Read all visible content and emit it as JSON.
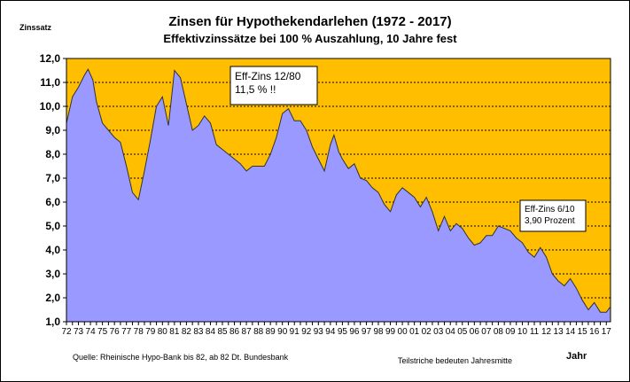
{
  "chart_data": {
    "type": "area",
    "title": "Zinsen für Hypothekendarlehen (1972 - 2017)",
    "subtitle": "Effektivzinssätze bei 100 % Auszahlung,  10 Jahre fest",
    "ylabel": "Zinssatz",
    "xlabel": "Jahr",
    "ylim": [
      1.0,
      12.0
    ],
    "yticks": [
      "1,0",
      "2,0",
      "3,0",
      "4,0",
      "5,0",
      "6,0",
      "7,0",
      "8,0",
      "9,0",
      "10,0",
      "11,0",
      "12,0"
    ],
    "xticks": [
      "72",
      "73",
      "74",
      "75",
      "76",
      "77",
      "78",
      "79",
      "80",
      "81",
      "82",
      "83",
      "84",
      "85",
      "86",
      "87",
      "88",
      "89",
      "90",
      "91",
      "92",
      "93",
      "94",
      "95",
      "96",
      "97",
      "98",
      "99",
      "00",
      "01",
      "02",
      "03",
      "04",
      "05",
      "06",
      "07",
      "08",
      "09",
      "10",
      "11",
      "12",
      "13",
      "14",
      "15",
      "16",
      "17"
    ],
    "x_start_year": 1972,
    "x_end_year": 2017,
    "series": [
      {
        "points": [
          [
            1972.0,
            9.3
          ],
          [
            1972.5,
            10.4
          ],
          [
            1973.0,
            10.8
          ],
          [
            1973.5,
            11.3
          ],
          [
            1973.8,
            11.55
          ],
          [
            1974.2,
            11.1
          ],
          [
            1974.5,
            10.2
          ],
          [
            1975.0,
            9.3
          ],
          [
            1975.5,
            9.0
          ],
          [
            1976.0,
            8.7
          ],
          [
            1976.5,
            8.5
          ],
          [
            1977.0,
            7.5
          ],
          [
            1977.5,
            6.4
          ],
          [
            1978.0,
            6.1
          ],
          [
            1978.5,
            7.3
          ],
          [
            1979.0,
            8.6
          ],
          [
            1979.5,
            10.0
          ],
          [
            1980.0,
            10.4
          ],
          [
            1980.5,
            9.2
          ],
          [
            1981.0,
            11.5
          ],
          [
            1981.5,
            11.2
          ],
          [
            1982.0,
            10.1
          ],
          [
            1982.5,
            9.0
          ],
          [
            1983.0,
            9.2
          ],
          [
            1983.5,
            9.6
          ],
          [
            1984.0,
            9.3
          ],
          [
            1984.5,
            8.4
          ],
          [
            1985.0,
            8.2
          ],
          [
            1985.5,
            8.0
          ],
          [
            1986.0,
            7.8
          ],
          [
            1986.5,
            7.6
          ],
          [
            1987.0,
            7.3
          ],
          [
            1987.5,
            7.5
          ],
          [
            1988.0,
            7.5
          ],
          [
            1988.5,
            7.5
          ],
          [
            1989.0,
            8.0
          ],
          [
            1989.5,
            8.7
          ],
          [
            1990.0,
            9.7
          ],
          [
            1990.5,
            9.9
          ],
          [
            1991.0,
            9.4
          ],
          [
            1991.5,
            9.4
          ],
          [
            1992.0,
            9.0
          ],
          [
            1992.5,
            8.3
          ],
          [
            1993.0,
            7.8
          ],
          [
            1993.5,
            7.3
          ],
          [
            1994.0,
            8.4
          ],
          [
            1994.3,
            8.8
          ],
          [
            1994.7,
            8.1
          ],
          [
            1995.0,
            7.8
          ],
          [
            1995.5,
            7.4
          ],
          [
            1996.0,
            7.6
          ],
          [
            1996.5,
            7.0
          ],
          [
            1997.0,
            6.9
          ],
          [
            1997.5,
            6.6
          ],
          [
            1998.0,
            6.4
          ],
          [
            1998.5,
            5.9
          ],
          [
            1999.0,
            5.6
          ],
          [
            1999.5,
            6.3
          ],
          [
            2000.0,
            6.6
          ],
          [
            2000.5,
            6.4
          ],
          [
            2001.0,
            6.2
          ],
          [
            2001.5,
            5.8
          ],
          [
            2002.0,
            6.2
          ],
          [
            2002.5,
            5.6
          ],
          [
            2003.0,
            4.8
          ],
          [
            2003.5,
            5.4
          ],
          [
            2004.0,
            4.8
          ],
          [
            2004.5,
            5.1
          ],
          [
            2005.0,
            4.9
          ],
          [
            2005.5,
            4.5
          ],
          [
            2006.0,
            4.2
          ],
          [
            2006.5,
            4.3
          ],
          [
            2007.0,
            4.6
          ],
          [
            2007.5,
            4.6
          ],
          [
            2008.0,
            5.0
          ],
          [
            2008.5,
            4.9
          ],
          [
            2009.0,
            4.8
          ],
          [
            2009.5,
            4.5
          ],
          [
            2010.0,
            4.3
          ],
          [
            2010.5,
            3.9
          ],
          [
            2011.0,
            3.7
          ],
          [
            2011.5,
            4.1
          ],
          [
            2012.0,
            3.7
          ],
          [
            2012.5,
            3.0
          ],
          [
            2013.0,
            2.7
          ],
          [
            2013.5,
            2.5
          ],
          [
            2014.0,
            2.8
          ],
          [
            2014.5,
            2.4
          ],
          [
            2015.0,
            1.9
          ],
          [
            2015.5,
            1.5
          ],
          [
            2016.0,
            1.8
          ],
          [
            2016.5,
            1.4
          ],
          [
            2017.0,
            1.4
          ],
          [
            2017.3,
            1.6
          ]
        ]
      }
    ],
    "annotations": [
      {
        "id": "peak",
        "lines": [
          "Eff-Zins 12/80",
          "11,5 %  !!"
        ]
      },
      {
        "id": "low",
        "lines": [
          "Eff-Zins 6/10",
          "3,90 Prozent"
        ]
      }
    ],
    "colors": {
      "plot_bg": "#FFBF00",
      "fill": "#9999FF",
      "line": "#333333",
      "grid": "#000000"
    },
    "grid": "horizontal dashed",
    "legend": "none"
  },
  "footer": {
    "source": "Quelle: Rheinische Hypo-Bank bis 82, ab 82 Dt. Bundesbank",
    "note": "Teilstriche bedeuten Jahresmitte"
  }
}
